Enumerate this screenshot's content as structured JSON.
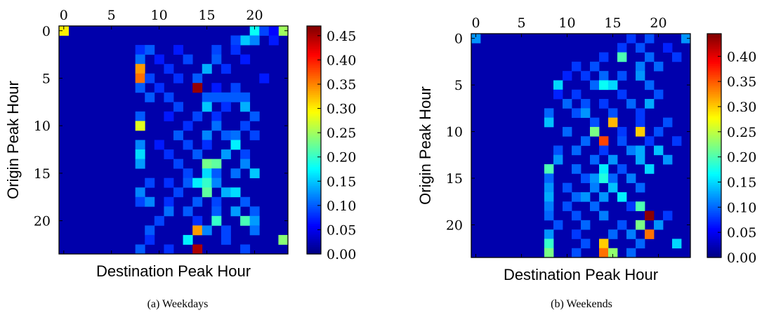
{
  "chart_data": [
    {
      "type": "heatmap",
      "caption": "(a) Weekdays",
      "xlabel": "Destination Peak Hour",
      "ylabel": "Origin Peak Hour",
      "x_range": [
        0,
        23
      ],
      "y_range": [
        0,
        23
      ],
      "x_ticks": [
        0,
        5,
        10,
        15,
        20
      ],
      "y_ticks": [
        0,
        5,
        10,
        15,
        20
      ],
      "x_tick_position": "top",
      "colormap": "jet",
      "colorbar": {
        "min": 0.0,
        "max": 0.47,
        "ticks": [
          "0.00",
          "0.05",
          "0.10",
          "0.15",
          "0.20",
          "0.25",
          "0.30",
          "0.35",
          "0.40",
          "0.45"
        ]
      },
      "background_value": 0.02,
      "cells": [
        [
          0,
          0,
          0.3
        ],
        [
          20,
          0,
          0.18
        ],
        [
          23,
          0,
          0.25
        ],
        [
          21,
          0,
          0.09
        ],
        [
          22,
          0,
          0.06
        ],
        [
          19,
          1,
          0.15
        ],
        [
          20,
          1,
          0.12
        ],
        [
          18,
          1,
          0.09
        ],
        [
          22,
          1,
          0.07
        ],
        [
          8,
          2,
          0.08
        ],
        [
          9,
          2,
          0.1
        ],
        [
          12,
          2,
          0.07
        ],
        [
          16,
          2,
          0.09
        ],
        [
          18,
          2,
          0.08
        ],
        [
          8,
          3,
          0.11
        ],
        [
          10,
          3,
          0.07
        ],
        [
          13,
          3,
          0.09
        ],
        [
          16,
          3,
          0.1
        ],
        [
          19,
          3,
          0.07
        ],
        [
          8,
          4,
          0.34
        ],
        [
          11,
          4,
          0.08
        ],
        [
          15,
          4,
          0.14
        ],
        [
          17,
          4,
          0.08
        ],
        [
          8,
          5,
          0.36
        ],
        [
          9,
          5,
          0.09
        ],
        [
          12,
          5,
          0.08
        ],
        [
          14,
          5,
          0.1
        ],
        [
          21,
          5,
          0.07
        ],
        [
          8,
          6,
          0.1
        ],
        [
          10,
          6,
          0.08
        ],
        [
          14,
          6,
          0.46
        ],
        [
          16,
          6,
          0.07
        ],
        [
          18,
          6,
          0.09
        ],
        [
          9,
          7,
          0.1
        ],
        [
          11,
          7,
          0.09
        ],
        [
          15,
          7,
          0.1
        ],
        [
          16,
          7,
          0.1
        ],
        [
          17,
          7,
          0.1
        ],
        [
          18,
          7,
          0.1
        ],
        [
          19,
          7,
          0.1
        ],
        [
          12,
          8,
          0.09
        ],
        [
          15,
          8,
          0.15
        ],
        [
          17,
          8,
          0.08
        ],
        [
          19,
          8,
          0.14
        ],
        [
          8,
          9,
          0.1
        ],
        [
          11,
          9,
          0.07
        ],
        [
          14,
          9,
          0.09
        ],
        [
          16,
          9,
          0.08
        ],
        [
          20,
          9,
          0.1
        ],
        [
          8,
          10,
          0.28
        ],
        [
          13,
          10,
          0.08
        ],
        [
          16,
          10,
          0.11
        ],
        [
          19,
          10,
          0.09
        ],
        [
          12,
          11,
          0.1
        ],
        [
          15,
          11,
          0.12
        ],
        [
          17,
          11,
          0.1
        ],
        [
          18,
          11,
          0.11
        ],
        [
          20,
          11,
          0.09
        ],
        [
          8,
          12,
          0.12
        ],
        [
          10,
          12,
          0.07
        ],
        [
          13,
          12,
          0.09
        ],
        [
          15,
          12,
          0.08
        ],
        [
          18,
          12,
          0.17
        ],
        [
          8,
          13,
          0.16
        ],
        [
          11,
          13,
          0.08
        ],
        [
          14,
          13,
          0.1
        ],
        [
          17,
          13,
          0.13
        ],
        [
          19,
          13,
          0.09
        ],
        [
          8,
          14,
          0.13
        ],
        [
          12,
          14,
          0.09
        ],
        [
          15,
          14,
          0.23
        ],
        [
          16,
          14,
          0.22
        ],
        [
          19,
          14,
          0.12
        ],
        [
          13,
          15,
          0.09
        ],
        [
          15,
          15,
          0.16
        ],
        [
          16,
          15,
          0.1
        ],
        [
          18,
          15,
          0.11
        ],
        [
          20,
          15,
          0.15
        ],
        [
          9,
          16,
          0.09
        ],
        [
          11,
          16,
          0.08
        ],
        [
          13,
          16,
          0.1
        ],
        [
          14,
          16,
          0.17
        ],
        [
          15,
          16,
          0.2
        ],
        [
          16,
          16,
          0.12
        ],
        [
          8,
          17,
          0.12
        ],
        [
          12,
          17,
          0.09
        ],
        [
          15,
          17,
          0.22
        ],
        [
          17,
          17,
          0.14
        ],
        [
          18,
          17,
          0.16
        ],
        [
          8,
          18,
          0.09
        ],
        [
          9,
          18,
          0.12
        ],
        [
          11,
          18,
          0.08
        ],
        [
          14,
          18,
          0.1
        ],
        [
          16,
          18,
          0.09
        ],
        [
          19,
          18,
          0.1
        ],
        [
          11,
          19,
          0.11
        ],
        [
          13,
          19,
          0.1
        ],
        [
          16,
          19,
          0.1
        ],
        [
          18,
          19,
          0.13
        ],
        [
          20,
          19,
          0.1
        ],
        [
          10,
          20,
          0.09
        ],
        [
          14,
          20,
          0.08
        ],
        [
          16,
          20,
          0.2
        ],
        [
          19,
          20,
          0.21
        ],
        [
          20,
          20,
          0.13
        ],
        [
          9,
          21,
          0.1
        ],
        [
          14,
          21,
          0.34
        ],
        [
          15,
          21,
          0.12
        ],
        [
          17,
          21,
          0.09
        ],
        [
          20,
          21,
          0.11
        ],
        [
          9,
          22,
          0.08
        ],
        [
          13,
          22,
          0.17
        ],
        [
          17,
          22,
          0.09
        ],
        [
          23,
          22,
          0.24
        ],
        [
          8,
          23,
          0.1
        ],
        [
          11,
          23,
          0.08
        ],
        [
          14,
          23,
          0.45
        ],
        [
          19,
          23,
          0.09
        ]
      ]
    },
    {
      "type": "heatmap",
      "caption": "(b) Weekends",
      "xlabel": "Destination Peak Hour",
      "ylabel": "Origin Peak Hour",
      "x_range": [
        0,
        23
      ],
      "y_range": [
        0,
        23
      ],
      "x_ticks": [
        0,
        5,
        10,
        15,
        20
      ],
      "y_ticks": [
        0,
        5,
        10,
        15,
        20
      ],
      "x_tick_position": "top",
      "colormap": "jet",
      "colorbar": {
        "min": 0.0,
        "max": 0.445,
        "ticks": [
          "0.00",
          "0.05",
          "0.10",
          "0.15",
          "0.20",
          "0.25",
          "0.30",
          "0.35",
          "0.40"
        ]
      },
      "background_value": 0.02,
      "cells": [
        [
          0,
          0,
          0.12
        ],
        [
          23,
          0,
          0.12
        ],
        [
          17,
          0,
          0.08
        ],
        [
          19,
          0,
          0.09
        ],
        [
          16,
          1,
          0.08
        ],
        [
          18,
          1,
          0.09
        ],
        [
          21,
          1,
          0.07
        ],
        [
          14,
          2,
          0.08
        ],
        [
          16,
          2,
          0.2
        ],
        [
          19,
          2,
          0.1
        ],
        [
          22,
          2,
          0.08
        ],
        [
          11,
          3,
          0.08
        ],
        [
          13,
          3,
          0.09
        ],
        [
          18,
          3,
          0.11
        ],
        [
          20,
          3,
          0.1
        ],
        [
          10,
          4,
          0.07
        ],
        [
          12,
          4,
          0.08
        ],
        [
          14,
          4,
          0.1
        ],
        [
          16,
          4,
          0.09
        ],
        [
          18,
          4,
          0.12
        ],
        [
          9,
          5,
          0.15
        ],
        [
          13,
          5,
          0.1
        ],
        [
          14,
          5,
          0.17
        ],
        [
          15,
          5,
          0.15
        ],
        [
          19,
          5,
          0.1
        ],
        [
          9,
          6,
          0.07
        ],
        [
          11,
          6,
          0.08
        ],
        [
          16,
          6,
          0.08
        ],
        [
          20,
          6,
          0.09
        ],
        [
          10,
          7,
          0.1
        ],
        [
          12,
          7,
          0.09
        ],
        [
          14,
          7,
          0.08
        ],
        [
          17,
          7,
          0.1
        ],
        [
          19,
          7,
          0.13
        ],
        [
          8,
          8,
          0.1
        ],
        [
          11,
          8,
          0.09
        ],
        [
          12,
          8,
          0.12
        ],
        [
          15,
          8,
          0.09
        ],
        [
          18,
          8,
          0.08
        ],
        [
          8,
          9,
          0.14
        ],
        [
          13,
          9,
          0.09
        ],
        [
          15,
          9,
          0.31
        ],
        [
          18,
          9,
          0.08
        ],
        [
          21,
          9,
          0.09
        ],
        [
          10,
          10,
          0.1
        ],
        [
          13,
          10,
          0.22
        ],
        [
          16,
          10,
          0.08
        ],
        [
          18,
          10,
          0.3
        ],
        [
          20,
          10,
          0.09
        ],
        [
          12,
          11,
          0.1
        ],
        [
          14,
          11,
          0.36
        ],
        [
          16,
          11,
          0.09
        ],
        [
          19,
          11,
          0.08
        ],
        [
          22,
          11,
          0.08
        ],
        [
          9,
          12,
          0.09
        ],
        [
          11,
          12,
          0.1
        ],
        [
          14,
          12,
          0.08
        ],
        [
          17,
          12,
          0.11
        ],
        [
          18,
          12,
          0.13
        ],
        [
          20,
          12,
          0.14
        ],
        [
          9,
          13,
          0.12
        ],
        [
          13,
          13,
          0.1
        ],
        [
          15,
          13,
          0.12
        ],
        [
          18,
          13,
          0.13
        ],
        [
          21,
          13,
          0.12
        ],
        [
          8,
          14,
          0.2
        ],
        [
          11,
          14,
          0.1
        ],
        [
          14,
          14,
          0.16
        ],
        [
          16,
          14,
          0.09
        ],
        [
          19,
          14,
          0.15
        ],
        [
          8,
          15,
          0.1
        ],
        [
          12,
          15,
          0.09
        ],
        [
          13,
          15,
          0.12
        ],
        [
          14,
          15,
          0.18
        ],
        [
          15,
          15,
          0.1
        ],
        [
          17,
          15,
          0.11
        ],
        [
          8,
          16,
          0.12
        ],
        [
          10,
          16,
          0.09
        ],
        [
          13,
          16,
          0.11
        ],
        [
          15,
          16,
          0.14
        ],
        [
          18,
          16,
          0.1
        ],
        [
          8,
          17,
          0.13
        ],
        [
          11,
          17,
          0.1
        ],
        [
          12,
          17,
          0.12
        ],
        [
          14,
          17,
          0.12
        ],
        [
          16,
          17,
          0.16
        ],
        [
          8,
          18,
          0.11
        ],
        [
          10,
          18,
          0.09
        ],
        [
          13,
          18,
          0.1
        ],
        [
          17,
          18,
          0.08
        ],
        [
          18,
          18,
          0.2
        ],
        [
          8,
          19,
          0.1
        ],
        [
          11,
          19,
          0.09
        ],
        [
          14,
          19,
          0.11
        ],
        [
          19,
          19,
          0.44
        ],
        [
          21,
          19,
          0.08
        ],
        [
          9,
          20,
          0.09
        ],
        [
          12,
          20,
          0.1
        ],
        [
          16,
          20,
          0.09
        ],
        [
          18,
          20,
          0.22
        ],
        [
          20,
          20,
          0.12
        ],
        [
          8,
          21,
          0.12
        ],
        [
          11,
          21,
          0.08
        ],
        [
          15,
          21,
          0.1
        ],
        [
          17,
          21,
          0.11
        ],
        [
          19,
          21,
          0.34
        ],
        [
          8,
          22,
          0.19
        ],
        [
          12,
          22,
          0.09
        ],
        [
          14,
          22,
          0.3
        ],
        [
          18,
          22,
          0.1
        ],
        [
          22,
          22,
          0.15
        ],
        [
          8,
          23,
          0.22
        ],
        [
          11,
          23,
          0.09
        ],
        [
          14,
          23,
          0.34
        ],
        [
          15,
          23,
          0.23
        ],
        [
          17,
          23,
          0.1
        ]
      ]
    }
  ]
}
